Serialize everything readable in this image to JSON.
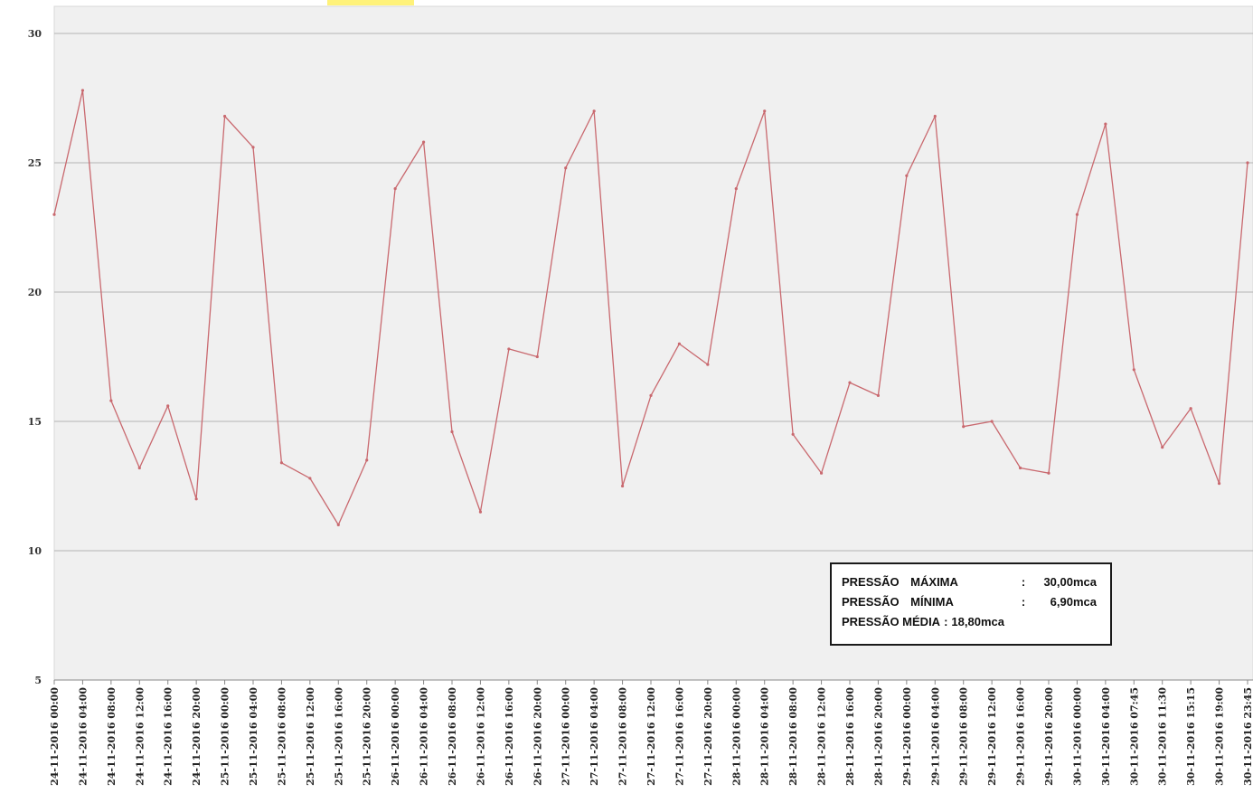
{
  "chart_data": {
    "type": "line",
    "title": "",
    "xlabel": "",
    "ylabel": "",
    "ylim": [
      5,
      30
    ],
    "yticks": [
      5,
      10,
      15,
      20,
      25,
      30
    ],
    "grid": "horizontal",
    "legend": "none",
    "colors": {
      "line": "#c9696f",
      "plot_bg": "#f0f0f0",
      "grid": "#b5b5b5"
    },
    "categories": [
      "24-11-2016 00:00",
      "24-11-2016 04:00",
      "24-11-2016 08:00",
      "24-11-2016 12:00",
      "24-11-2016 16:00",
      "24-11-2016 20:00",
      "25-11-2016 00:00",
      "25-11-2016 04:00",
      "25-11-2016 08:00",
      "25-11-2016 12:00",
      "25-11-2016 16:00",
      "25-11-2016 20:00",
      "26-11-2016 00:00",
      "26-11-2016 04:00",
      "26-11-2016 08:00",
      "26-11-2016 12:00",
      "26-11-2016 16:00",
      "26-11-2016 20:00",
      "27-11-2016 00:00",
      "27-11-2016 04:00",
      "27-11-2016 08:00",
      "27-11-2016 12:00",
      "27-11-2016 16:00",
      "27-11-2016 20:00",
      "28-11-2016 00:00",
      "28-11-2016 04:00",
      "28-11-2016 08:00",
      "28-11-2016 12:00",
      "28-11-2016 16:00",
      "28-11-2016 20:00",
      "29-11-2016 00:00",
      "29-11-2016 04:00",
      "29-11-2016 08:00",
      "29-11-2016 12:00",
      "29-11-2016 16:00",
      "29-11-2016 20:00",
      "30-11-2016 00:00",
      "30-11-2016 04:00",
      "30-11-2016 07:45",
      "30-11-2016 11:30",
      "30-11-2016 15:15",
      "30-11-2016 19:00",
      "30-11-2016 23:45"
    ],
    "series": [
      {
        "values": [
          23.0,
          27.8,
          15.8,
          13.2,
          15.6,
          12.0,
          26.8,
          25.6,
          13.4,
          12.8,
          11.0,
          13.5,
          24.0,
          25.8,
          14.6,
          11.5,
          17.8,
          17.5,
          24.8,
          27.0,
          12.5,
          16.0,
          18.0,
          17.2,
          24.0,
          27.0,
          14.5,
          13.0,
          16.5,
          16.0,
          24.5,
          26.8,
          14.8,
          15.0,
          13.2,
          13.0,
          23.0,
          26.5,
          17.0,
          14.0,
          15.5,
          12.6,
          25.0
        ]
      }
    ],
    "summary": {
      "max_label": "PRESSÃO  MÁXIMA",
      "max_sep": ":",
      "max_value": "30,00mca",
      "min_label": "PRESSÃO  MÍNIMA",
      "min_sep": ":",
      "min_value": "6,90mca",
      "avg_label": "PRESSÃO MÉDIA",
      "avg_sep": ":",
      "avg_value": "18,80mca"
    }
  }
}
